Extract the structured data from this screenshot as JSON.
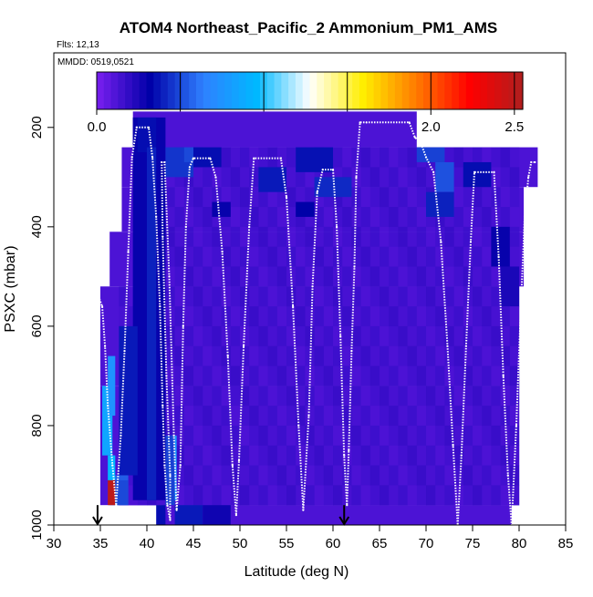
{
  "chart_data": {
    "type": "heatmap",
    "title": "ATOM4 Northeast_Pacific_2 Ammonium_PM1_AMS",
    "flights_label": "Flts: 12,13",
    "date_label": "MMDD: 0519,0521",
    "xlabel": "Latitude (deg N)",
    "ylabel": "PSXC (mbar)",
    "xlim": [
      30,
      85
    ],
    "ylim": [
      1000,
      50
    ],
    "x_ticks": [
      "30",
      "35",
      "40",
      "45",
      "50",
      "55",
      "60",
      "65",
      "70",
      "75",
      "80",
      "85"
    ],
    "y_ticks": [
      "200",
      "400",
      "600",
      "800",
      "1000"
    ],
    "colorbar": {
      "range": [
        0,
        2.55
      ],
      "ticks": [
        "0.0",
        "0.5",
        "1.0",
        "1.5",
        "2.0",
        "2.5"
      ],
      "colors": [
        "#7a1ff0",
        "#0000a8",
        "#2f80ff",
        "#00b8ff",
        "#ffffff",
        "#ffee00",
        "#ff7a00",
        "#ff0000",
        "#b01e1e"
      ]
    },
    "background_value": 0.12,
    "cells": [
      {
        "lat": [
          38.5,
          39
        ],
        "p": [
          180,
          600
        ],
        "v": 0.22
      },
      {
        "lat": [
          38.5,
          42
        ],
        "p": [
          180,
          950
        ],
        "v": 0.3
      },
      {
        "lat": [
          39,
          41
        ],
        "p": [
          180,
          250
        ],
        "v": 0.35
      },
      {
        "lat": [
          40,
          41
        ],
        "p": [
          240,
          950
        ],
        "v": 0.4
      },
      {
        "lat": [
          42,
          45
        ],
        "p": [
          240,
          300
        ],
        "v": 0.45
      },
      {
        "lat": [
          44,
          46
        ],
        "p": [
          240,
          270
        ],
        "v": 0.5
      },
      {
        "lat": [
          45,
          48
        ],
        "p": [
          240,
          280
        ],
        "v": 0.35
      },
      {
        "lat": [
          52,
          55
        ],
        "p": [
          280,
          330
        ],
        "v": 0.38
      },
      {
        "lat": [
          56,
          60
        ],
        "p": [
          240,
          290
        ],
        "v": 0.36
      },
      {
        "lat": [
          58,
          62
        ],
        "p": [
          300,
          340
        ],
        "v": 0.42
      },
      {
        "lat": [
          47,
          49
        ],
        "p": [
          350,
          380
        ],
        "v": 0.3
      },
      {
        "lat": [
          56,
          58
        ],
        "p": [
          350,
          380
        ],
        "v": 0.32
      },
      {
        "lat": [
          69,
          72
        ],
        "p": [
          240,
          270
        ],
        "v": 0.48
      },
      {
        "lat": [
          71,
          73
        ],
        "p": [
          270,
          330
        ],
        "v": 0.52
      },
      {
        "lat": [
          70,
          73
        ],
        "p": [
          330,
          380
        ],
        "v": 0.4
      },
      {
        "lat": [
          74,
          77
        ],
        "p": [
          270,
          320
        ],
        "v": 0.35
      },
      {
        "lat": [
          77,
          79
        ],
        "p": [
          400,
          480
        ],
        "v": 0.3
      },
      {
        "lat": [
          78,
          80
        ],
        "p": [
          480,
          560
        ],
        "v": 0.25
      },
      {
        "lat": [
          37,
          39
        ],
        "p": [
          600,
          900
        ],
        "v": 0.38
      },
      {
        "lat": [
          36,
          38
        ],
        "p": [
          900,
          960
        ],
        "v": 0.55
      },
      {
        "lat": [
          35.2,
          36.3
        ],
        "p": [
          720,
          860
        ],
        "v": 0.85
      },
      {
        "lat": [
          35.8,
          36.6
        ],
        "p": [
          660,
          780
        ],
        "v": 0.75
      },
      {
        "lat": [
          35.8,
          36.6
        ],
        "p": [
          860,
          910
        ],
        "v": 0.95
      },
      {
        "lat": [
          35.8,
          36.6
        ],
        "p": [
          910,
          960
        ],
        "v": 2.5
      },
      {
        "lat": [
          36.6,
          38
        ],
        "p": [
          910,
          960
        ],
        "v": 0.5
      },
      {
        "lat": [
          42.5,
          43.2
        ],
        "p": [
          820,
          950
        ],
        "v": 0.8
      },
      {
        "lat": [
          42,
          43
        ],
        "p": [
          820,
          960
        ],
        "v": 0.48
      },
      {
        "lat": [
          41,
          42
        ],
        "p": [
          960,
          1000
        ],
        "v": 0.35
      },
      {
        "lat": [
          43,
          46
        ],
        "p": [
          960,
          1000
        ],
        "v": 0.38
      },
      {
        "lat": [
          46,
          49
        ],
        "p": [
          960,
          1000
        ],
        "v": 0.28
      },
      {
        "lat": [
          30,
          32
        ],
        "p": [
          0,
          0
        ],
        "v": 0.12
      }
    ],
    "flight_track": [
      [
        34.8,
        540
      ],
      [
        35.2,
        560
      ],
      [
        35.5,
        640
      ],
      [
        35.8,
        760
      ],
      [
        36.3,
        880
      ],
      [
        36.7,
        960
      ],
      [
        37.2,
        820
      ],
      [
        37.6,
        650
      ],
      [
        38.0,
        450
      ],
      [
        38.4,
        260
      ],
      [
        38.9,
        200
      ],
      [
        40.2,
        200
      ],
      [
        40.6,
        260
      ],
      [
        41.0,
        380
      ],
      [
        41.4,
        560
      ],
      [
        41.7,
        760
      ],
      [
        41.9,
        880
      ],
      [
        42.2,
        960
      ],
      [
        42.5,
        990
      ],
      [
        42.5,
        900
      ],
      [
        42.1,
        700
      ],
      [
        41.7,
        420
      ],
      [
        41.6,
        270
      ],
      [
        41.9,
        270
      ],
      [
        42.4,
        500
      ],
      [
        42.9,
        820
      ],
      [
        43.2,
        970
      ],
      [
        43.6,
        880
      ],
      [
        43.9,
        600
      ],
      [
        44.2,
        400
      ],
      [
        44.6,
        280
      ],
      [
        45.0,
        262
      ],
      [
        46.8,
        262
      ],
      [
        47.4,
        300
      ],
      [
        48.1,
        450
      ],
      [
        48.7,
        660
      ],
      [
        49.2,
        880
      ],
      [
        49.6,
        980
      ],
      [
        49.9,
        870
      ],
      [
        50.4,
        640
      ],
      [
        51.0,
        400
      ],
      [
        51.5,
        262
      ],
      [
        54.4,
        262
      ],
      [
        55.0,
        340
      ],
      [
        55.7,
        560
      ],
      [
        56.3,
        800
      ],
      [
        56.8,
        970
      ],
      [
        57.4,
        780
      ],
      [
        57.8,
        520
      ],
      [
        58.3,
        330
      ],
      [
        58.9,
        285
      ],
      [
        60.0,
        285
      ],
      [
        60.4,
        400
      ],
      [
        60.8,
        620
      ],
      [
        61.2,
        860
      ],
      [
        61.5,
        960
      ],
      [
        61.7,
        850
      ],
      [
        62.0,
        650
      ],
      [
        62.3,
        480
      ],
      [
        62.5,
        300
      ],
      [
        62.9,
        190
      ],
      [
        63.6,
        190
      ],
      [
        68.2,
        190
      ],
      [
        68.8,
        220
      ],
      [
        69.4,
        230
      ],
      [
        70.0,
        260
      ],
      [
        70.8,
        290
      ],
      [
        71.6,
        430
      ],
      [
        72.3,
        640
      ],
      [
        72.9,
        840
      ],
      [
        73.4,
        1000
      ],
      [
        73.8,
        860
      ],
      [
        74.3,
        640
      ],
      [
        74.8,
        430
      ],
      [
        75.2,
        290
      ],
      [
        77.3,
        290
      ],
      [
        77.8,
        460
      ],
      [
        78.3,
        700
      ],
      [
        78.8,
        900
      ],
      [
        79.2,
        1000
      ],
      [
        79.7,
        800
      ],
      [
        80.2,
        560
      ],
      [
        80.6,
        380
      ],
      [
        81.0,
        300
      ],
      [
        81.3,
        270
      ],
      [
        81.7,
        270
      ]
    ],
    "arrows_at_lat": [
      34.7,
      61.2
    ]
  }
}
